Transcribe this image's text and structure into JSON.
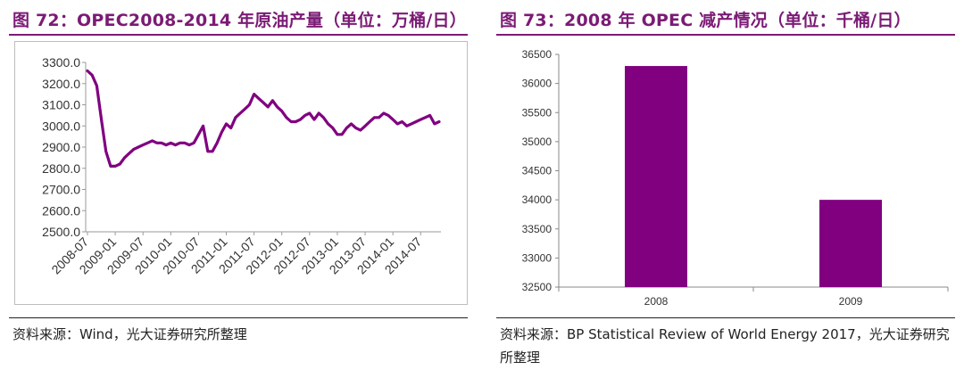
{
  "left": {
    "title": "图 72：OPEC2008-2014 年原油产量（单位：万桶/日）",
    "source": "资料来源：Wind，光大证券研究所整理"
  },
  "right": {
    "title": "图 73：2008 年 OPEC 减产情况（单位：千桶/日）",
    "source": "资料来源：BP Statistical Review of World Energy 2017，光大证券研究所整理"
  },
  "colors": {
    "accent": "#7b1b75",
    "series": "#800080"
  },
  "chart_data": [
    {
      "type": "line",
      "title": "",
      "xlabel": "",
      "ylabel": "",
      "ylim": [
        2500,
        3300
      ],
      "y_ticks": [
        "2500.0",
        "2600.0",
        "2700.0",
        "2800.0",
        "2900.0",
        "3000.0",
        "3100.0",
        "3200.0",
        "3300.0"
      ],
      "x_tick_labels": [
        "2008-07",
        "2009-01",
        "2009-07",
        "2010-01",
        "2010-07",
        "2011-01",
        "2011-07",
        "2012-01",
        "2012-07",
        "2013-01",
        "2013-07",
        "2014-01",
        "2014-07"
      ],
      "grid": false,
      "legend": "none",
      "series": [
        {
          "x": [
            "2008-07",
            "2008-08",
            "2008-09",
            "2008-10",
            "2008-11",
            "2008-12",
            "2009-01",
            "2009-02",
            "2009-03",
            "2009-04",
            "2009-05",
            "2009-06",
            "2009-07",
            "2009-08",
            "2009-09",
            "2009-10",
            "2009-11",
            "2009-12",
            "2010-01",
            "2010-02",
            "2010-03",
            "2010-04",
            "2010-05",
            "2010-06",
            "2010-07",
            "2010-08",
            "2010-09",
            "2010-10",
            "2010-11",
            "2010-12",
            "2011-01",
            "2011-02",
            "2011-03",
            "2011-04",
            "2011-05",
            "2011-06",
            "2011-07",
            "2011-08",
            "2011-09",
            "2011-10",
            "2011-11",
            "2011-12",
            "2012-01",
            "2012-02",
            "2012-03",
            "2012-04",
            "2012-05",
            "2012-06",
            "2012-07",
            "2012-08",
            "2012-09",
            "2012-10",
            "2012-11",
            "2012-12",
            "2013-01",
            "2013-02",
            "2013-03",
            "2013-04",
            "2013-05",
            "2013-06",
            "2013-07",
            "2013-08",
            "2013-09",
            "2013-10",
            "2013-11",
            "2013-12",
            "2014-01",
            "2014-02",
            "2014-03",
            "2014-04",
            "2014-05",
            "2014-06",
            "2014-07",
            "2014-08",
            "2014-09",
            "2014-10",
            "2014-11"
          ],
          "values": [
            3260,
            3240,
            3190,
            3030,
            2880,
            2810,
            2810,
            2820,
            2850,
            2870,
            2890,
            2900,
            2910,
            2920,
            2930,
            2920,
            2920,
            2910,
            2920,
            2910,
            2920,
            2920,
            2910,
            2920,
            2960,
            3000,
            2880,
            2880,
            2920,
            2970,
            3010,
            2990,
            3040,
            3060,
            3080,
            3100,
            3150,
            3130,
            3110,
            3090,
            3120,
            3090,
            3070,
            3040,
            3020,
            3020,
            3030,
            3050,
            3060,
            3030,
            3060,
            3040,
            3010,
            2990,
            2960,
            2960,
            2990,
            3010,
            2990,
            2980,
            3000,
            3020,
            3040,
            3040,
            3060,
            3050,
            3030,
            3010,
            3020,
            3000,
            3010,
            3020,
            3030,
            3040,
            3050,
            3010,
            3020
          ]
        }
      ]
    },
    {
      "type": "bar",
      "title": "",
      "xlabel": "",
      "ylabel": "",
      "categories": [
        "2008",
        "2009"
      ],
      "values": [
        36300,
        34000
      ],
      "ylim": [
        32500,
        36500
      ],
      "y_ticks": [
        "32500",
        "33000",
        "33500",
        "34000",
        "34500",
        "35000",
        "35500",
        "36000",
        "36500"
      ],
      "grid": false,
      "legend": "none"
    }
  ]
}
